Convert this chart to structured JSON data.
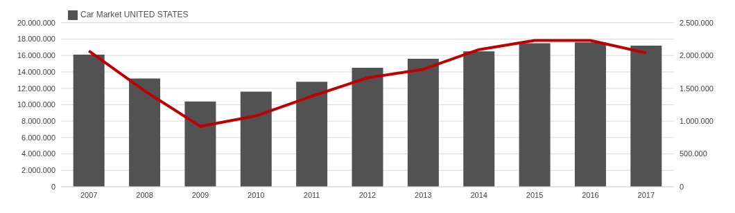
{
  "chart_data": {
    "type": "bar",
    "categories": [
      "2007",
      "2008",
      "2009",
      "2010",
      "2011",
      "2012",
      "2013",
      "2014",
      "2015",
      "2016",
      "2017"
    ],
    "series": [
      {
        "name": "Car Market UNITED STATES",
        "color": "#525252",
        "values": [
          16100000,
          13200000,
          10400000,
          11600000,
          12800000,
          14500000,
          15600000,
          16500000,
          17500000,
          17600000,
          17200000
        ]
      },
      {
        "type": "line",
        "axis": "y2",
        "color": "#c00000",
        "values": [
          2070000,
          1460000,
          920000,
          1080000,
          1380000,
          1660000,
          1790000,
          2090000,
          2230000,
          2230000,
          2040000
        ]
      }
    ],
    "ylim": [
      0,
      20000000
    ],
    "yticks": [
      0,
      {
        "value": 2000000,
        "label": "2.000.000"
      },
      {
        "value": 4000000,
        "label": "4.000.000"
      },
      {
        "value": 6000000,
        "label": "6.000.000"
      },
      {
        "value": 8000000,
        "label": "8.000.000"
      },
      {
        "value": 10000000,
        "label": "10.000.000"
      },
      {
        "value": 12000000,
        "label": "12.000.000"
      },
      {
        "value": 14000000,
        "label": "14.000.000"
      },
      {
        "value": 16000000,
        "label": "16.000.000"
      },
      {
        "value": 18000000,
        "label": "18.000.000"
      },
      {
        "value": 20000000,
        "label": "20.000.000"
      }
    ],
    "y2lim": [
      0,
      2500000
    ],
    "y2ticks": [
      0,
      {
        "value": 500000,
        "label": "500.000"
      },
      {
        "value": 1000000,
        "label": "1.000.000"
      },
      {
        "value": 1500000,
        "label": "1.500.000"
      },
      {
        "value": 2000000,
        "label": "2.000.000"
      },
      {
        "value": 2500000,
        "label": "2.500.000"
      }
    ],
    "grid": "y",
    "legend": "top left",
    "marker": "none",
    "line_style": "solid"
  }
}
